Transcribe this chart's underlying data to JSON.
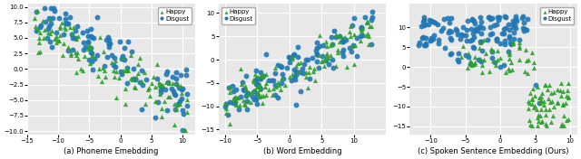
{
  "fig_width": 6.4,
  "fig_height": 1.76,
  "dpi": 100,
  "bg_color": "#e8e8e8",
  "grid_color": "white",
  "happy_color": "#2ca02c",
  "disgust_color": "#1f77b4",
  "marker_size_happy": 14,
  "marker_size_disgust": 18,
  "alpha": 0.9,
  "panels": [
    {
      "title": "(a) Phoneme Emebdding",
      "xlim": [
        -15,
        12
      ],
      "ylim": [
        -10.5,
        10.5
      ],
      "xticks": [
        -15,
        -10,
        -5,
        0,
        5,
        10
      ],
      "yticks": [
        -10.0,
        -7.5,
        -5.0,
        -2.5,
        0.0,
        2.5,
        5.0,
        7.5,
        10.0
      ],
      "legend_loc": "upper right"
    },
    {
      "title": "(b) Word Embedding",
      "xlim": [
        -11,
        15
      ],
      "ylim": [
        -16,
        12
      ],
      "xticks": [
        -10,
        -5,
        0,
        5,
        10
      ],
      "yticks": [
        -15,
        -10,
        -5,
        0,
        5,
        10
      ],
      "legend_loc": "upper left"
    },
    {
      "title": "(c) Spoken Sentence Embedding (Ours)",
      "xlim": [
        -13,
        11
      ],
      "ylim": [
        -17,
        16
      ],
      "xticks": [
        -10,
        -5,
        0,
        5,
        10
      ],
      "yticks": [
        -15,
        -10,
        -5,
        0,
        5,
        10
      ],
      "legend_loc": "upper right"
    }
  ]
}
